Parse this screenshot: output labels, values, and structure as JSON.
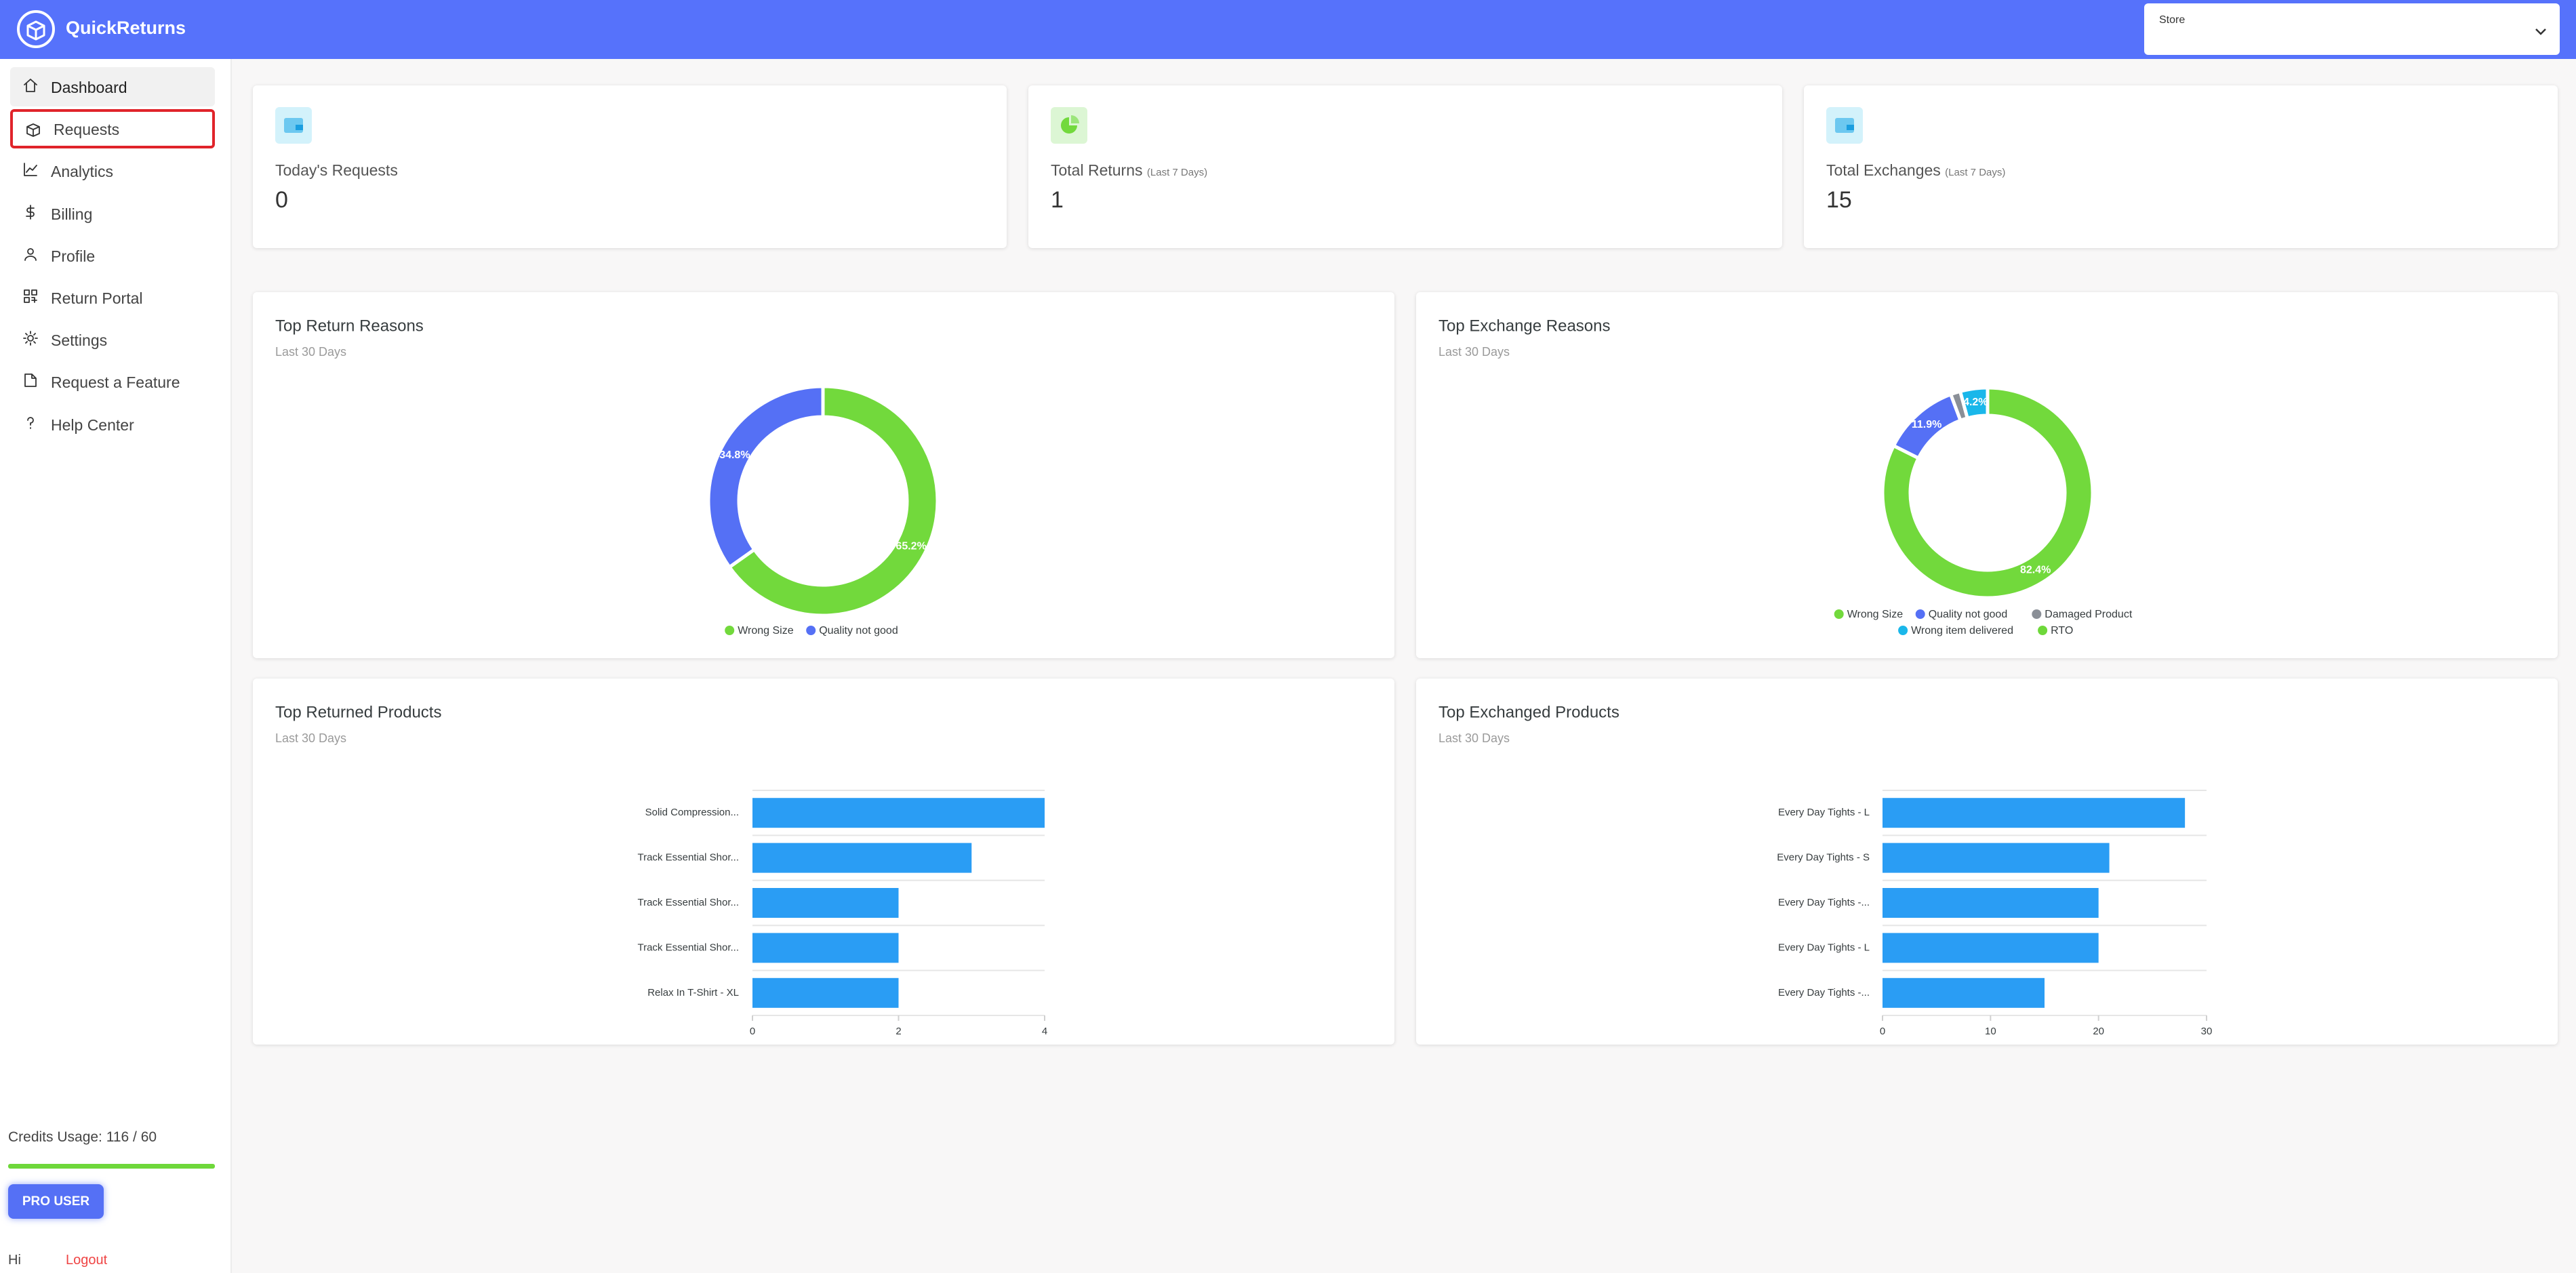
{
  "header": {
    "brand": "QuickReturns",
    "store_label": "Store"
  },
  "nav": [
    "Dashboard",
    "Requests",
    "Analytics",
    "Billing",
    "Profile",
    "Return Portal",
    "Settings",
    "Request a Feature",
    "Help Center"
  ],
  "credits": "Credits Usage: 116 / 60",
  "pro_button": "PRO USER",
  "greeting": "Hi",
  "logout": "Logout",
  "stats": [
    {
      "title": "Today's Requests",
      "value": 0,
      "icon_color": "#d3f2fb"
    },
    {
      "title": "Total Returns",
      "note": "(Last 7 Days)",
      "value": 1,
      "icon_color": "#dcf6d4"
    },
    {
      "title": "Total Exchanges",
      "note": "(Last 7 Days)",
      "value": 15,
      "icon_color": "#d3f2fb"
    }
  ],
  "charts": [
    {
      "type": "donut",
      "title": "Top Return Reasons",
      "subtitle": "Last 30 Days",
      "categories": [
        "Wrong Size",
        "Quality not good"
      ],
      "values": [
        65.2,
        34.8
      ],
      "value_labels": [
        "65.2%",
        "34.8%"
      ],
      "colors": [
        "#72d93c",
        "#5570f5"
      ]
    },
    {
      "type": "donut",
      "title": "Top Exchange Reasons",
      "subtitle": "Last 30 Days",
      "categories": [
        "Wrong Size",
        "Quality not good",
        "Damaged Product",
        "Wrong item delivered",
        "RTO"
      ],
      "values": [
        82.4,
        11.9,
        1.5,
        4.2,
        0
      ],
      "value_labels": [
        "82.4%",
        "11.9%",
        null,
        "4.2%",
        null
      ],
      "colors": [
        "#72d93c",
        "#5570f5",
        "#8a8f97",
        "#1ab7ea",
        "#6ed83a"
      ]
    },
    {
      "type": "bar",
      "title": "Top Returned Products",
      "subtitle": "Last 30 Days",
      "categories": [
        "Solid Compression...",
        "Track Essential Shor...",
        "Track Essential Shor...",
        "Track Essential Shor...",
        "Relax In T-Shirt - XL"
      ],
      "values": [
        4,
        3,
        2,
        2,
        2
      ],
      "color": "#2a9df4",
      "xlim": [
        0,
        4
      ],
      "xticks": [
        0,
        2,
        4
      ]
    },
    {
      "type": "bar",
      "title": "Top Exchanged Products",
      "subtitle": "Last 30 Days",
      "categories": [
        "Every Day Tights - L",
        "Every Day Tights - S",
        "Every Day Tights -...",
        "Every Day Tights - L",
        "Every Day Tights -..."
      ],
      "values": [
        28,
        21,
        20,
        20,
        15
      ],
      "color": "#2a9df4",
      "xlim": [
        0,
        30
      ],
      "xticks": [
        0,
        10,
        20,
        30
      ]
    }
  ]
}
